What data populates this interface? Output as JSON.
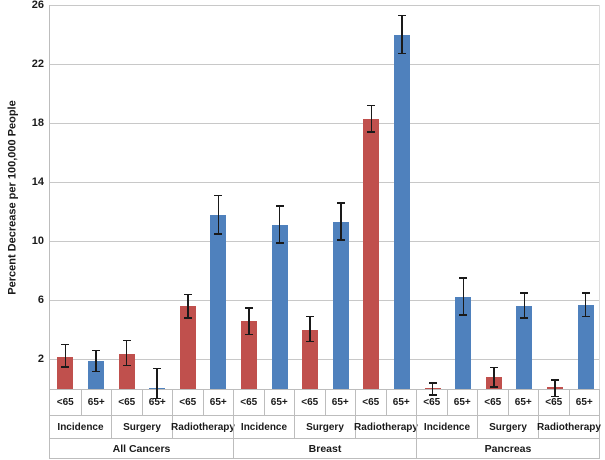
{
  "chart_data": {
    "type": "bar",
    "title": "",
    "ylabel": "Percent Decrease per 100,000 People",
    "xlabel": "",
    "ylim": [
      0,
      26
    ],
    "y_ticks": [
      2,
      6,
      10,
      14,
      18,
      22,
      26
    ],
    "grid": true,
    "legend": "none",
    "series_colors": {
      "<65": "#c0504d",
      "65+": "#4f81bd"
    },
    "error_bar_color": "#1a1a1a",
    "groups": [
      "All Cancers",
      "Breast",
      "Pancreas"
    ],
    "measures": [
      "Incidence",
      "Surgery",
      "Radiotherapy"
    ],
    "age_labels": [
      "<65",
      "65+"
    ],
    "bars": [
      {
        "group": "All Cancers",
        "measure": "Incidence",
        "age": "<65",
        "value": 2.2,
        "err_high": 3.0,
        "err_low": 1.5
      },
      {
        "group": "All Cancers",
        "measure": "Incidence",
        "age": "65+",
        "value": 1.9,
        "err_high": 2.6,
        "err_low": 1.2
      },
      {
        "group": "All Cancers",
        "measure": "Surgery",
        "age": "<65",
        "value": 2.4,
        "err_high": 3.3,
        "err_low": 1.6
      },
      {
        "group": "All Cancers",
        "measure": "Surgery",
        "age": "65+",
        "value": 0.05,
        "err_high": 1.4,
        "err_low": -0.65
      },
      {
        "group": "All Cancers",
        "measure": "Radiotherapy",
        "age": "<65",
        "value": 5.6,
        "err_high": 6.4,
        "err_low": 4.8
      },
      {
        "group": "All Cancers",
        "measure": "Radiotherapy",
        "age": "65+",
        "value": 11.8,
        "err_high": 13.1,
        "err_low": 10.5
      },
      {
        "group": "Breast",
        "measure": "Incidence",
        "age": "<65",
        "value": 4.6,
        "err_high": 5.5,
        "err_low": 3.7
      },
      {
        "group": "Breast",
        "measure": "Incidence",
        "age": "65+",
        "value": 11.1,
        "err_high": 12.4,
        "err_low": 9.9
      },
      {
        "group": "Breast",
        "measure": "Surgery",
        "age": "<65",
        "value": 4.0,
        "err_high": 4.9,
        "err_low": 3.2
      },
      {
        "group": "Breast",
        "measure": "Surgery",
        "age": "65+",
        "value": 11.3,
        "err_high": 12.6,
        "err_low": 10.1
      },
      {
        "group": "Breast",
        "measure": "Radiotherapy",
        "age": "<65",
        "value": 18.3,
        "err_high": 19.2,
        "err_low": 17.4
      },
      {
        "group": "Breast",
        "measure": "Radiotherapy",
        "age": "65+",
        "value": 24.0,
        "err_high": 25.3,
        "err_low": 22.7
      },
      {
        "group": "Pancreas",
        "measure": "Incidence",
        "age": "<65",
        "value": 0.05,
        "err_high": 0.4,
        "err_low": -0.4
      },
      {
        "group": "Pancreas",
        "measure": "Incidence",
        "age": "65+",
        "value": 6.2,
        "err_high": 7.5,
        "err_low": 5.0
      },
      {
        "group": "Pancreas",
        "measure": "Surgery",
        "age": "<65",
        "value": 0.8,
        "err_high": 1.45,
        "err_low": 0.15
      },
      {
        "group": "Pancreas",
        "measure": "Surgery",
        "age": "65+",
        "value": 5.6,
        "err_high": 6.5,
        "err_low": 4.8
      },
      {
        "group": "Pancreas",
        "measure": "Radiotherapy",
        "age": "<65",
        "value": 0.15,
        "err_high": 0.6,
        "err_low": -0.5
      },
      {
        "group": "Pancreas",
        "measure": "Radiotherapy",
        "age": "65+",
        "value": 5.7,
        "err_high": 6.5,
        "err_low": 4.9
      }
    ]
  }
}
